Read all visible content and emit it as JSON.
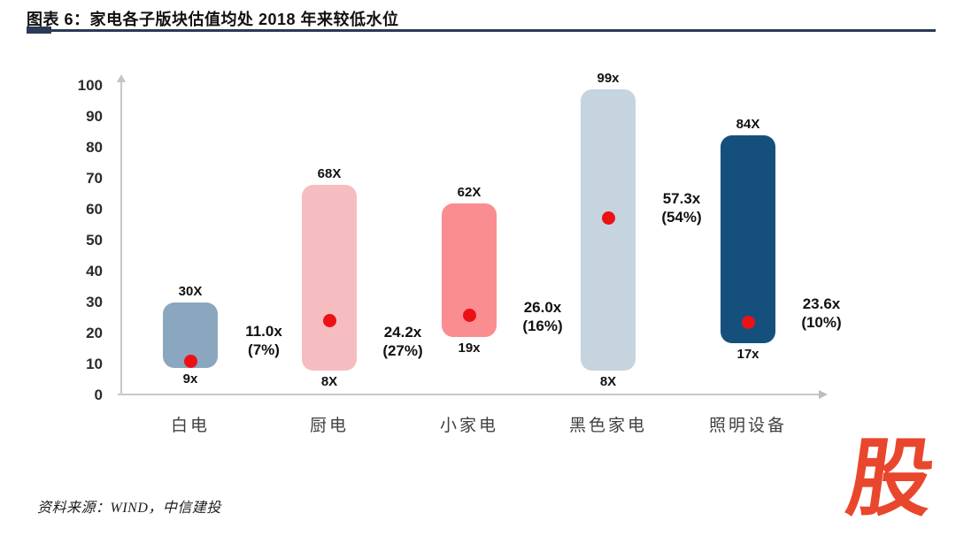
{
  "header": {
    "title": "图表 6：家电各子版块估值均处 2018 年来较低水位"
  },
  "chart_data": {
    "type": "bar",
    "subtype": "floating-range-bars-with-current-marker",
    "title": "家电各子版块估值均处2018年来较低水位",
    "xlabel": "",
    "ylabel": "",
    "ylim": [
      0,
      100
    ],
    "yticks": [
      0,
      10,
      20,
      30,
      40,
      50,
      60,
      70,
      80,
      90,
      100
    ],
    "grid": false,
    "legend": false,
    "marker_color": "#ec1115",
    "axis_color": "#c8c8c8",
    "categories": [
      "白电",
      "厨电",
      "小家电",
      "黑色家电",
      "照明设备"
    ],
    "items": [
      {
        "category": "白电",
        "min": 9,
        "max": 30,
        "min_label": "9x",
        "max_label": "30X",
        "current": 11.0,
        "current_label": "11.0x",
        "percentile_label": "(7%)",
        "bar_color": "#8ba7bf",
        "annotation_dy": -24
      },
      {
        "category": "厨电",
        "min": 8,
        "max": 68,
        "min_label": "8X",
        "max_label": "68X",
        "current": 24.2,
        "current_label": "24.2x",
        "percentile_label": "(27%)",
        "bar_color": "#f5bdbf",
        "annotation_dy": 24
      },
      {
        "category": "小家电",
        "min": 19,
        "max": 62,
        "min_label": "19x",
        "max_label": "62X",
        "current": 26.0,
        "current_label": "26.0x",
        "percentile_label": "(16%)",
        "bar_color": "#fa8d8f",
        "annotation_dy": 2
      },
      {
        "category": "黑色家电",
        "min": 8,
        "max": 99,
        "min_label": "8X",
        "max_label": "99x",
        "current": 57.3,
        "current_label": "57.3x",
        "percentile_label": "(54%)",
        "bar_color": "#c6d4e0",
        "annotation_dy": -11
      },
      {
        "category": "照明设备",
        "min": 17,
        "max": 84,
        "min_label": "17x",
        "max_label": "84X",
        "current": 23.6,
        "current_label": "23.6x",
        "percentile_label": "(10%)",
        "bar_color": "#15507c",
        "annotation_dy": -10
      }
    ]
  },
  "footer": {
    "source": "资料来源：WIND，中信建投",
    "logo_text": "股",
    "logo_color": "#e9462e"
  }
}
